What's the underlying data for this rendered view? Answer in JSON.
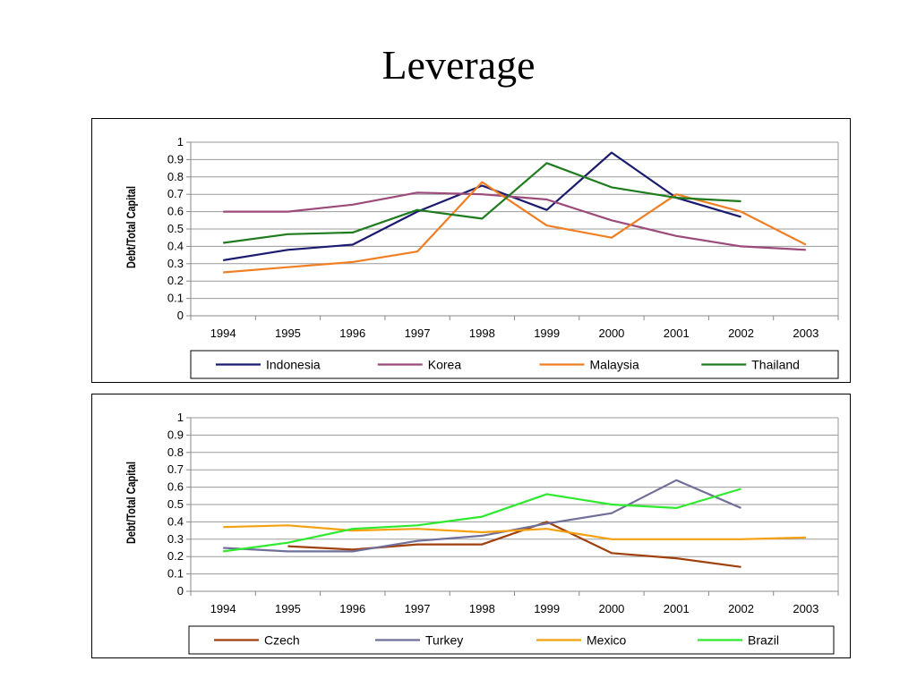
{
  "page_title": "Leverage",
  "chart_data": [
    {
      "type": "line",
      "title": "",
      "xlabel": "",
      "ylabel": "Debt/Total Capital",
      "categories": [
        "1994",
        "1995",
        "1996",
        "1997",
        "1998",
        "1999",
        "2000",
        "2001",
        "2002",
        "2003"
      ],
      "ylim": [
        0,
        1
      ],
      "yticks": [
        "0",
        "0.1",
        "0.2",
        "0.3",
        "0.4",
        "0.5",
        "0.6",
        "0.7",
        "0.8",
        "0.9",
        "1"
      ],
      "grid": true,
      "legend_position": "bottom",
      "series": [
        {
          "name": "Indonesia",
          "color": "#1a1a6e",
          "values": [
            0.32,
            0.38,
            0.41,
            0.6,
            0.75,
            0.61,
            0.94,
            0.68,
            0.57,
            null
          ]
        },
        {
          "name": "Korea",
          "color": "#9b4a7a",
          "values": [
            0.6,
            0.6,
            0.64,
            0.71,
            0.7,
            0.67,
            0.55,
            0.46,
            0.4,
            0.38
          ]
        },
        {
          "name": "Malaysia",
          "color": "#f07f24",
          "values": [
            0.25,
            0.28,
            0.31,
            0.37,
            0.77,
            0.52,
            0.45,
            0.7,
            0.6,
            0.41
          ]
        },
        {
          "name": "Thailand",
          "color": "#1e7b1e",
          "values": [
            0.42,
            0.47,
            0.48,
            0.61,
            0.56,
            0.88,
            0.74,
            0.68,
            0.66,
            null
          ]
        }
      ]
    },
    {
      "type": "line",
      "title": "",
      "xlabel": "",
      "ylabel": "Debt/Total Capital",
      "categories": [
        "1994",
        "1995",
        "1996",
        "1997",
        "1998",
        "1999",
        "2000",
        "2001",
        "2002",
        "2003"
      ],
      "ylim": [
        0,
        1
      ],
      "yticks": [
        "0",
        "0.1",
        "0.2",
        "0.3",
        "0.4",
        "0.5",
        "0.6",
        "0.7",
        "0.8",
        "0.9",
        "1"
      ],
      "grid": true,
      "legend_position": "bottom",
      "series": [
        {
          "name": "Czech",
          "color": "#a0400c",
          "values": [
            null,
            0.26,
            0.24,
            0.27,
            0.27,
            0.4,
            0.22,
            0.19,
            0.14,
            null
          ]
        },
        {
          "name": "Turkey",
          "color": "#6f6f9a",
          "values": [
            0.25,
            0.23,
            0.23,
            0.29,
            0.32,
            0.39,
            0.45,
            0.64,
            0.48,
            null
          ]
        },
        {
          "name": "Mexico",
          "color": "#f5a00f",
          "values": [
            0.37,
            0.38,
            0.35,
            0.36,
            0.34,
            0.36,
            0.3,
            0.3,
            0.3,
            0.31
          ]
        },
        {
          "name": "Brazil",
          "color": "#2eea2e",
          "values": [
            0.23,
            0.28,
            0.36,
            0.38,
            0.43,
            0.56,
            0.5,
            0.48,
            0.59,
            null
          ]
        }
      ]
    }
  ]
}
